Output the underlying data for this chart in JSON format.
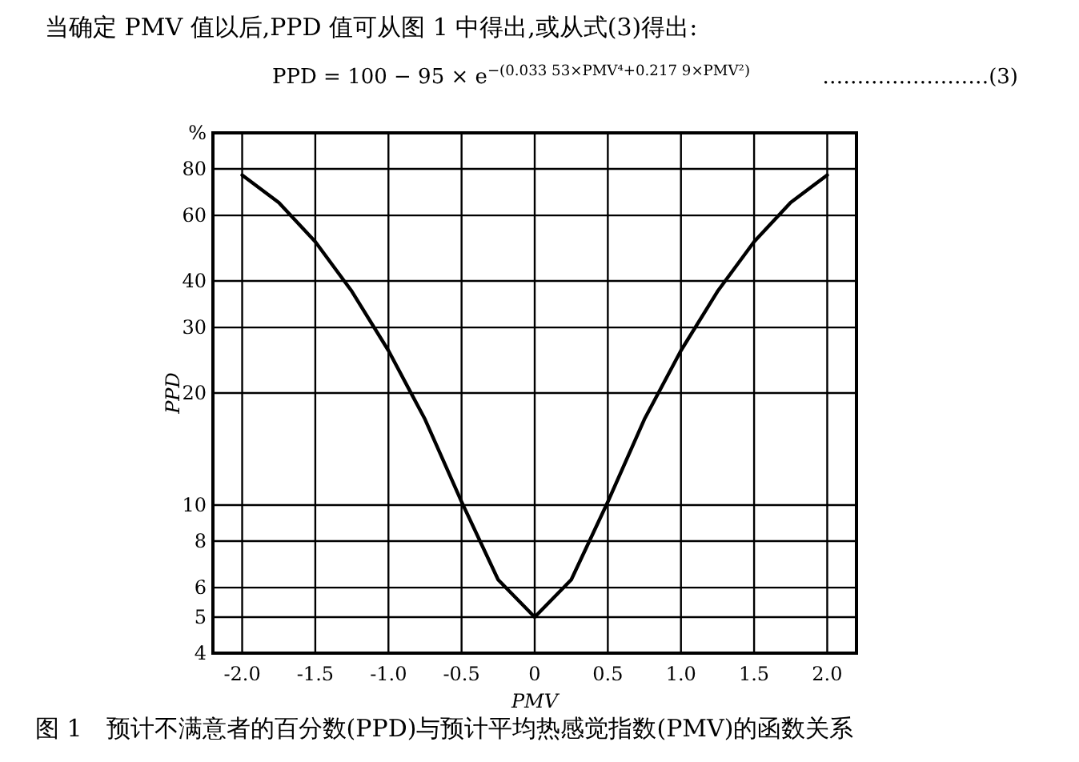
{
  "chart_data": {
    "type": "line",
    "title": "图 1　预计不满意者的百分数(PPD)与预计平均热感觉指数(PMV)的函数关系",
    "xlabel": "PMV",
    "ylabel": "PPD",
    "annotations": [
      "当确定 PMV 值以后,PPD 值可从图 1 中得出,或从式(3)得出:",
      "PPD = 100 − 95 × e$^{−(0.033 53×PMV⁴+0.217 9×PMV²)}$",
      "……………………(3)"
    ],
    "x": [
      -2,
      -1.75,
      -1.5,
      -1.25,
      -1,
      -0.75,
      -0.5,
      -0.25,
      0,
      0.25,
      0.5,
      0.75,
      1,
      1.25,
      1.5,
      1.75,
      2
    ],
    "series": [
      {
        "color": "#000000",
        "values": [
          77,
          65,
          51,
          37.5,
          26,
          17,
          10.2,
          6.3,
          5,
          6.3,
          10.2,
          17,
          26,
          37.5,
          51,
          65,
          77
        ]
      }
    ],
    "xlim": [
      -2.2,
      2.2
    ],
    "ylim": [
      4,
      100
    ],
    "log": "y",
    "grid": true,
    "xticks": [
      {
        "value": -2,
        "label": "-2.0"
      },
      {
        "value": -1.5,
        "label": "-1.5"
      },
      {
        "value": -1,
        "label": "-1.0"
      },
      {
        "value": -0.5,
        "label": "-0.5"
      },
      0,
      0.5,
      {
        "value": 1,
        "label": "1.0"
      },
      1.5,
      {
        "value": 2,
        "label": "2.0"
      }
    ],
    "yticks": [
      4,
      5,
      6,
      8,
      10,
      20,
      30,
      40,
      60,
      80,
      {
        "value": 100,
        "label": "%"
      }
    ]
  }
}
